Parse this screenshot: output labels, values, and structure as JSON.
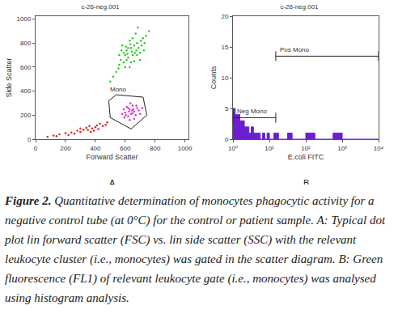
{
  "chart_data": [
    {
      "type": "scatter",
      "panel": "A",
      "title": "c-26-neg.001",
      "x_label": "Forward Scatter",
      "y_label": "Side Scatter",
      "xlim": [
        0,
        1024
      ],
      "ylim": [
        0,
        1024
      ],
      "xticks": [
        0,
        200,
        400,
        600,
        800,
        1000
      ],
      "yticks": [
        0,
        200,
        400,
        600,
        800,
        1000
      ],
      "grid": false,
      "marker": "dot",
      "series": [
        {
          "color": "#22cc22",
          "x": [
            560,
            600,
            640,
            680,
            620,
            700,
            580,
            660,
            720,
            540,
            610,
            650,
            690,
            630,
            570,
            710,
            600,
            670,
            740,
            520,
            590,
            640,
            680,
            620,
            660,
            700,
            560,
            650,
            610,
            730,
            500,
            760,
            630,
            590,
            675,
            645,
            615,
            705,
            555,
            685,
            725,
            575,
            635,
            665,
            605
          ],
          "values": [
            620,
            700,
            760,
            800,
            680,
            720,
            780,
            650,
            840,
            560,
            740,
            700,
            760,
            820,
            660,
            780,
            600,
            880,
            860,
            520,
            720,
            640,
            700,
            760,
            780,
            660,
            700,
            840,
            660,
            800,
            480,
            900,
            600,
            640,
            740,
            730,
            710,
            820,
            590,
            930,
            740,
            740,
            790,
            720,
            770
          ]
        },
        {
          "color": "#dd33cc",
          "x": [
            600,
            630,
            660,
            620,
            680,
            650,
            590,
            700,
            640,
            610,
            670,
            625,
            655,
            690,
            580,
            635,
            660,
            605,
            715,
            645,
            620,
            675,
            595,
            650,
            630
          ],
          "values": [
            220,
            250,
            230,
            190,
            260,
            280,
            250,
            210,
            210,
            270,
            200,
            230,
            250,
            240,
            210,
            300,
            170,
            200,
            260,
            240,
            260,
            280,
            180,
            215,
            160
          ]
        },
        {
          "color": "#dd2222",
          "x": [
            80,
            120,
            160,
            200,
            240,
            280,
            300,
            320,
            350,
            380,
            400,
            420,
            450,
            470,
            260,
            340,
            390,
            430,
            220,
            360,
            300,
            410,
            480,
            140,
            370
          ],
          "values": [
            20,
            30,
            40,
            50,
            55,
            70,
            60,
            80,
            75,
            90,
            100,
            85,
            110,
            120,
            45,
            95,
            70,
            130,
            35,
            110,
            90,
            115,
            140,
            25,
            60
          ]
        }
      ],
      "gate": {
        "label": "Mono",
        "x": [
          490,
          540,
          720,
          745,
          640,
          500
        ],
        "y": [
          320,
          370,
          350,
          200,
          85,
          180
        ]
      }
    },
    {
      "type": "histogram",
      "panel": "B",
      "title": "c-26-neg.001",
      "x_label": "E.coli FITC",
      "y_label": "Counts",
      "log": "x",
      "color": "#6a1fd0",
      "xlim": [
        1,
        10000
      ],
      "ylim": [
        0,
        20
      ],
      "xticks": [
        {
          "value": 1,
          "label": "10⁰"
        },
        {
          "value": 10,
          "label": "10¹"
        },
        {
          "value": 100,
          "label": "10²"
        },
        {
          "value": 1000,
          "label": "10³"
        },
        {
          "value": 10000,
          "label": "10⁴"
        }
      ],
      "yticks": [
        0,
        5,
        10,
        15,
        20
      ],
      "grid": false,
      "bins": [
        1,
        1.15,
        1.33,
        1.54,
        1.78,
        2.05,
        2.37,
        2.74,
        3.16,
        3.65,
        4.22,
        4.87,
        5.62,
        6.49,
        7.5,
        8.66,
        10,
        13.3,
        17.8,
        23.7,
        31.6,
        42.2,
        56.2,
        75,
        100,
        178,
        316,
        562,
        1000,
        1778,
        3162,
        5623,
        10000
      ],
      "counts": [
        5,
        4,
        4,
        3,
        3,
        2,
        2,
        1,
        2,
        1,
        1,
        1,
        0,
        1,
        0,
        1,
        0,
        1,
        0,
        0,
        1,
        0,
        0,
        0,
        1,
        0,
        0,
        1,
        0,
        0,
        0,
        0
      ],
      "gates": [
        {
          "label": "Neg Mono",
          "from": 1,
          "to": 15,
          "level": 3.5
        },
        {
          "label": "Pos Mono",
          "from": 15,
          "to": 10000,
          "level": 13.5
        }
      ]
    }
  ],
  "caption": {
    "label": "Figure 2.",
    "text": "Quantitative determination of monocytes phagocytic activity for a negative control tube (at 0°C) for the control or patient sample. A: Typical dot plot lin forward scatter (FSC) vs. lin side scatter (SSC) with the relevant leukocyte cluster (i.e., monocytes) was gated in the scatter diagram. B: Green fluorescence (FL1) of relevant leukocyte gate (i.e., monocytes) was analysed using histogram analysis."
  }
}
